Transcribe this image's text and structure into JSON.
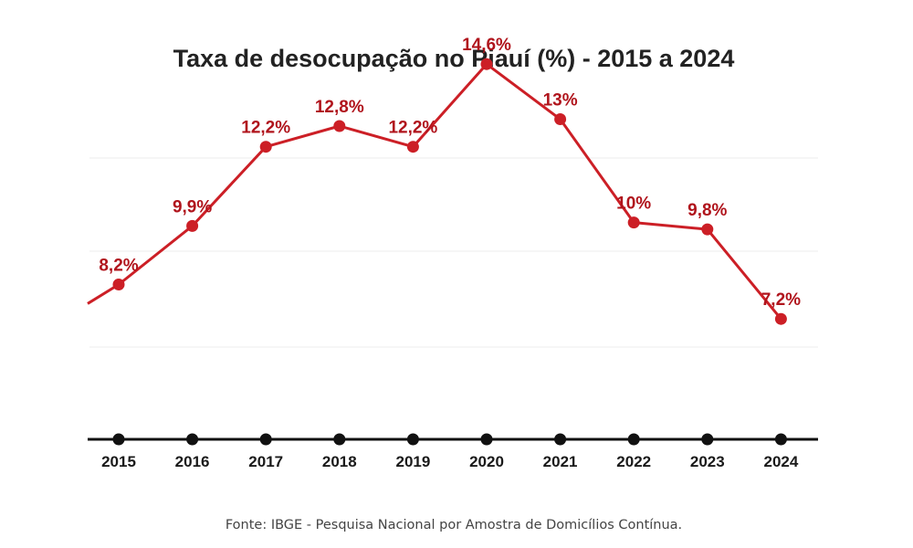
{
  "chart_data": {
    "type": "line",
    "title": "Taxa de desocupação no Piauí (%) - 2015 a 2024",
    "categories": [
      "2015",
      "2016",
      "2017",
      "2018",
      "2019",
      "2020",
      "2021",
      "2022",
      "2023",
      "2024"
    ],
    "series": [
      {
        "values": [
          8.2,
          9.9,
          12.2,
          12.8,
          12.2,
          14.6,
          13,
          10,
          9.8,
          7.2
        ],
        "labels": [
          "8,2%",
          "9,9%",
          "12,2%",
          "12,8%",
          "12,2%",
          "14,6%",
          "13%",
          "10%",
          "9,8%",
          "7,2%"
        ]
      }
    ],
    "xlabel": "",
    "ylabel": "",
    "grid": true,
    "legend": "none",
    "source": "Fonte: IBGE - Pesquisa Nacional por Amostra de Domicílios Contínua."
  },
  "colors": {
    "line": "#cc1f26",
    "label": "#b0141c",
    "axis": "#111111",
    "grid": "#ececec"
  }
}
